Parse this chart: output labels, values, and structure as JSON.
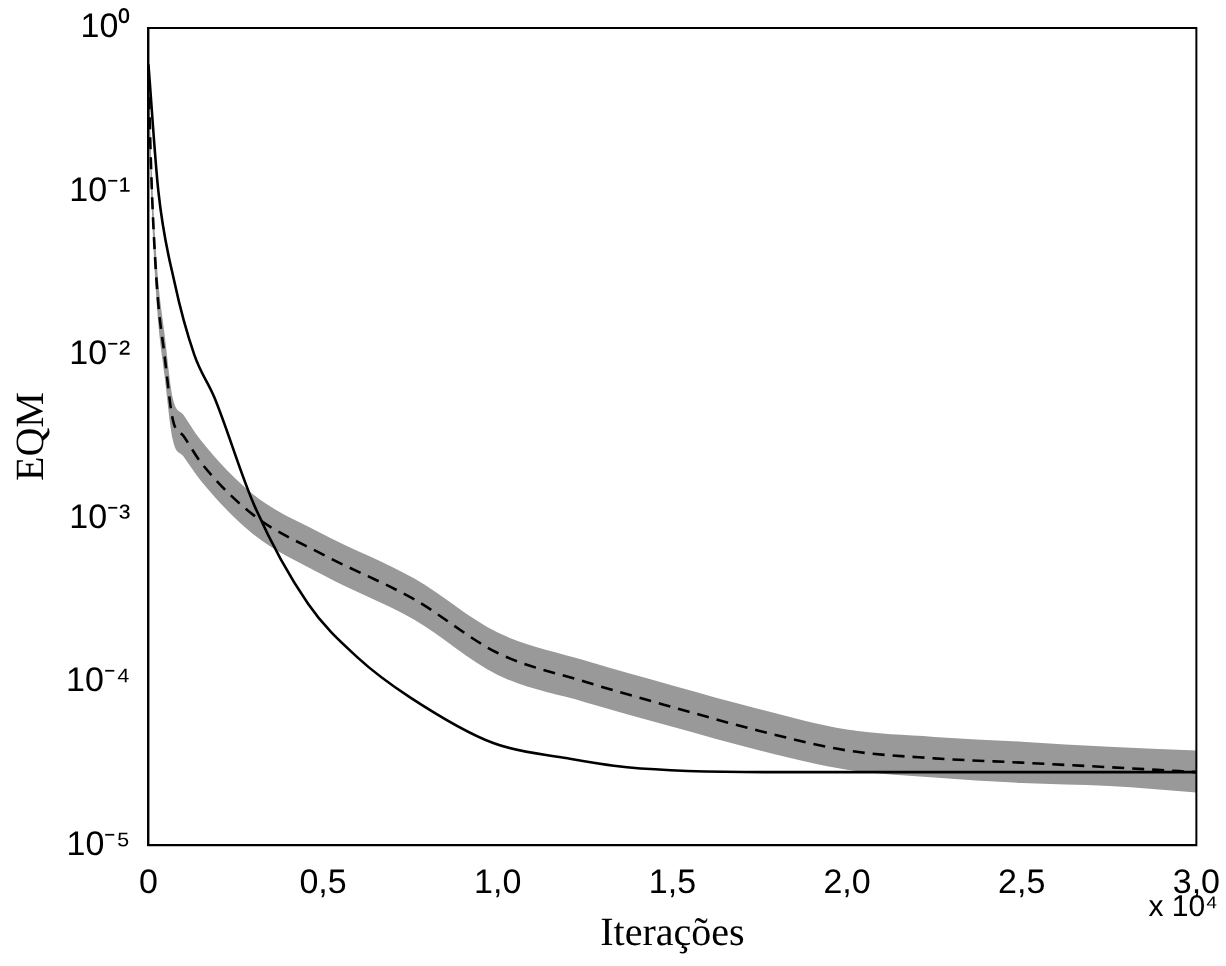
{
  "chart_data": {
    "type": "line",
    "xlabel": "Iterações",
    "ylabel": "EQM",
    "log": "y",
    "grid": false,
    "xlim": [
      0,
      3
    ],
    "ylim": [
      1e-05,
      1
    ],
    "xticks": [
      0,
      {
        "value": 0.5,
        "label": "0,5"
      },
      {
        "value": 1,
        "label": "1,0"
      },
      {
        "value": 1.5,
        "label": "1,5"
      },
      {
        "value": 2,
        "label": "2,0"
      },
      {
        "value": 2.5,
        "label": "2,5"
      },
      {
        "value": 3,
        "label": "3,0"
      }
    ],
    "yticks": [
      {
        "value": 1e-05,
        "label": "10⁻⁵"
      },
      {
        "value": 0.0001,
        "label": "10⁻⁴"
      },
      {
        "value": 0.001,
        "label": "10⁻³"
      },
      {
        "value": 0.01,
        "label": "10⁻²"
      },
      {
        "value": 0.1,
        "label": "10⁻¹"
      },
      {
        "value": 1,
        "label": "10⁰"
      }
    ],
    "annotations": [
      "x 10⁴"
    ],
    "series": [
      {
        "color": "#000000",
        "line_style": "dashed",
        "x": [
          0,
          0.01,
          0.025,
          0.046,
          0.07,
          0.1,
          0.15,
          0.3,
          0.5,
          0.76,
          1,
          1.25,
          1.5,
          1.75,
          2,
          2.25,
          2.5,
          2.75,
          3
        ],
        "values": [
          0.5,
          0.1,
          0.025,
          0.01,
          0.004,
          0.0032,
          0.0022,
          0.00105,
          0.0006,
          0.00032,
          0.00015,
          0.0001,
          7e-05,
          5e-05,
          3.8e-05,
          3.4e-05,
          3.2e-05,
          3e-05,
          2.8e-05
        ],
        "lower": [
          0.38,
          0.075,
          0.019,
          0.0075,
          0.003,
          0.0024,
          0.0017,
          0.0008,
          0.00045,
          0.00024,
          0.00011,
          7.5e-05,
          5.3e-05,
          3.8e-05,
          2.9e-05,
          2.6e-05,
          2.4e-05,
          2.3e-05,
          2.1e-05
        ],
        "upper": [
          0.65,
          0.13,
          0.034,
          0.0135,
          0.0054,
          0.0043,
          0.003,
          0.0014,
          0.0008,
          0.00043,
          0.0002,
          0.000135,
          9.5e-05,
          6.8e-05,
          5.1e-05,
          4.6e-05,
          4.3e-05,
          4e-05,
          3.8e-05
        ]
      },
      {
        "color": "#000000",
        "line_style": "solid",
        "x": [
          0,
          0.0285,
          0.0743,
          0.1314,
          0.1886,
          0.303,
          0.457,
          0.6,
          0.75,
          0.989,
          1.2,
          1.37,
          1.77,
          3
        ],
        "values": [
          0.6,
          0.1,
          0.028,
          0.01,
          0.0055,
          0.0012,
          0.0003,
          0.00014,
          8e-05,
          4.2e-05,
          3.4e-05,
          3e-05,
          2.8e-05,
          2.8e-05
        ]
      }
    ]
  }
}
